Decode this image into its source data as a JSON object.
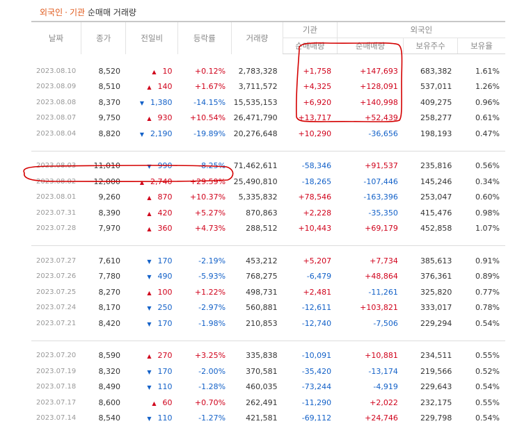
{
  "title": {
    "foreign": "외국인",
    "separator": "·",
    "inst": "기관",
    "rest": "순매매 거래량"
  },
  "headers": {
    "date": "날짜",
    "close": "종가",
    "change": "전일비",
    "rate": "등락률",
    "volume": "거래량",
    "inst_group": "기관",
    "foreign_group": "외국인",
    "inst_net": "순매매량",
    "foreign_net": "순매매량",
    "foreign_hold": "보유주수",
    "foreign_ratio": "보유율"
  },
  "colors": {
    "up": "#d0021b",
    "down": "#1361c8",
    "annotation": "#d40000"
  },
  "groups": [
    [
      {
        "date": "2023.08.10",
        "close": "8,520",
        "dir": "up",
        "chg": "10",
        "rate": "+0.12%",
        "vol": "2,783,328",
        "inst": "+1,758",
        "frgn": "+147,693",
        "hold": "683,382",
        "ratio": "1.61%"
      },
      {
        "date": "2023.08.09",
        "close": "8,510",
        "dir": "up",
        "chg": "140",
        "rate": "+1.67%",
        "vol": "3,711,572",
        "inst": "+4,325",
        "frgn": "+128,091",
        "hold": "537,011",
        "ratio": "1.26%"
      },
      {
        "date": "2023.08.08",
        "close": "8,370",
        "dir": "down",
        "chg": "1,380",
        "rate": "-14.15%",
        "vol": "15,535,153",
        "inst": "+6,920",
        "frgn": "+140,998",
        "hold": "409,275",
        "ratio": "0.96%"
      },
      {
        "date": "2023.08.07",
        "close": "9,750",
        "dir": "up",
        "chg": "930",
        "rate": "+10.54%",
        "vol": "26,471,790",
        "inst": "+13,717",
        "frgn": "+52,439",
        "hold": "258,277",
        "ratio": "0.61%"
      },
      {
        "date": "2023.08.04",
        "close": "8,820",
        "dir": "down",
        "chg": "2,190",
        "rate": "-19.89%",
        "vol": "20,276,648",
        "inst": "+10,290",
        "frgn": "-36,656",
        "hold": "198,193",
        "ratio": "0.47%"
      }
    ],
    [
      {
        "date": "2023.08.03",
        "close": "11,010",
        "dir": "down",
        "chg": "990",
        "rate": "-8.25%",
        "vol": "71,462,611",
        "inst": "-58,346",
        "frgn": "+91,537",
        "hold": "235,816",
        "ratio": "0.56%"
      },
      {
        "date": "2023.08.02",
        "close": "12,000",
        "dir": "up",
        "chg": "2,740",
        "rate": "+29.59%",
        "vol": "25,490,810",
        "inst": "-18,265",
        "frgn": "-107,446",
        "hold": "145,246",
        "ratio": "0.34%"
      },
      {
        "date": "2023.08.01",
        "close": "9,260",
        "dir": "up",
        "chg": "870",
        "rate": "+10.37%",
        "vol": "5,335,832",
        "inst": "+78,546",
        "frgn": "-163,396",
        "hold": "253,047",
        "ratio": "0.60%"
      },
      {
        "date": "2023.07.31",
        "close": "8,390",
        "dir": "up",
        "chg": "420",
        "rate": "+5.27%",
        "vol": "870,863",
        "inst": "+2,228",
        "frgn": "-35,350",
        "hold": "415,476",
        "ratio": "0.98%"
      },
      {
        "date": "2023.07.28",
        "close": "7,970",
        "dir": "up",
        "chg": "360",
        "rate": "+4.73%",
        "vol": "288,512",
        "inst": "+10,443",
        "frgn": "+69,179",
        "hold": "452,858",
        "ratio": "1.07%"
      }
    ],
    [
      {
        "date": "2023.07.27",
        "close": "7,610",
        "dir": "down",
        "chg": "170",
        "rate": "-2.19%",
        "vol": "453,212",
        "inst": "+5,207",
        "frgn": "+7,734",
        "hold": "385,613",
        "ratio": "0.91%"
      },
      {
        "date": "2023.07.26",
        "close": "7,780",
        "dir": "down",
        "chg": "490",
        "rate": "-5.93%",
        "vol": "768,275",
        "inst": "-6,479",
        "frgn": "+48,864",
        "hold": "376,361",
        "ratio": "0.89%"
      },
      {
        "date": "2023.07.25",
        "close": "8,270",
        "dir": "up",
        "chg": "100",
        "rate": "+1.22%",
        "vol": "498,731",
        "inst": "+2,481",
        "frgn": "-11,261",
        "hold": "325,820",
        "ratio": "0.77%"
      },
      {
        "date": "2023.07.24",
        "close": "8,170",
        "dir": "down",
        "chg": "250",
        "rate": "-2.97%",
        "vol": "560,881",
        "inst": "-12,611",
        "frgn": "+103,821",
        "hold": "333,017",
        "ratio": "0.78%"
      },
      {
        "date": "2023.07.21",
        "close": "8,420",
        "dir": "down",
        "chg": "170",
        "rate": "-1.98%",
        "vol": "210,853",
        "inst": "-12,740",
        "frgn": "-7,506",
        "hold": "229,294",
        "ratio": "0.54%"
      }
    ],
    [
      {
        "date": "2023.07.20",
        "close": "8,590",
        "dir": "up",
        "chg": "270",
        "rate": "+3.25%",
        "vol": "335,838",
        "inst": "-10,091",
        "frgn": "+10,881",
        "hold": "234,511",
        "ratio": "0.55%"
      },
      {
        "date": "2023.07.19",
        "close": "8,320",
        "dir": "down",
        "chg": "170",
        "rate": "-2.00%",
        "vol": "370,581",
        "inst": "-35,420",
        "frgn": "-13,174",
        "hold": "219,566",
        "ratio": "0.52%"
      },
      {
        "date": "2023.07.18",
        "close": "8,490",
        "dir": "down",
        "chg": "110",
        "rate": "-1.28%",
        "vol": "460,035",
        "inst": "-73,244",
        "frgn": "-4,919",
        "hold": "229,643",
        "ratio": "0.54%"
      },
      {
        "date": "2023.07.17",
        "close": "8,600",
        "dir": "up",
        "chg": "60",
        "rate": "+0.70%",
        "vol": "262,491",
        "inst": "-11,290",
        "frgn": "+2,022",
        "hold": "232,175",
        "ratio": "0.55%"
      },
      {
        "date": "2023.07.14",
        "close": "8,540",
        "dir": "down",
        "chg": "110",
        "rate": "-1.27%",
        "vol": "421,581",
        "inst": "-69,112",
        "frgn": "+24,746",
        "hold": "229,798",
        "ratio": "0.54%"
      }
    ]
  ]
}
